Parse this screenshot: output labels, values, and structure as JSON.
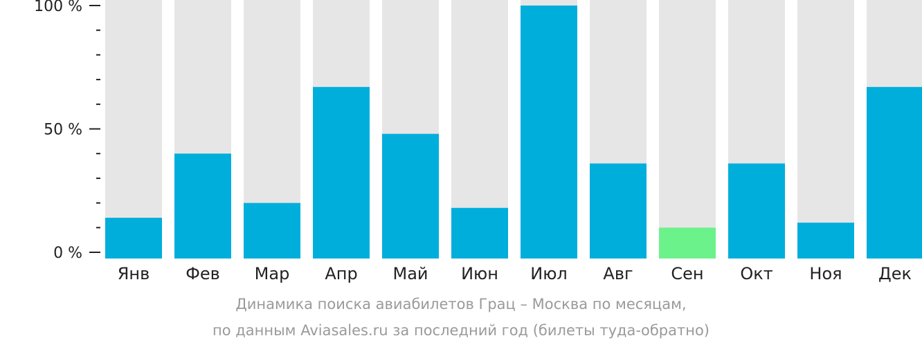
{
  "chart_data": {
    "type": "bar",
    "categories": [
      "Янв",
      "Фев",
      "Мар",
      "Апр",
      "Май",
      "Июн",
      "Июл",
      "Авг",
      "Сен",
      "Окт",
      "Ноя",
      "Дек"
    ],
    "values": [
      14,
      40,
      20,
      67,
      48,
      18,
      100,
      36,
      10,
      36,
      12,
      67
    ],
    "ylim": [
      0,
      100
    ],
    "yticks": [
      {
        "value": 0,
        "label": "0 %"
      },
      {
        "value": 50,
        "label": "50 %"
      },
      {
        "value": 100,
        "label": "100 %"
      }
    ],
    "minor_tick_step": 10,
    "highlight_index": 8,
    "colors": {
      "bar": "#00aedc",
      "highlight": "#6cf28a",
      "background_bar": "#e6e6e6",
      "axis": "#222222"
    }
  },
  "caption": {
    "line1": "Динамика поиска авиабилетов Грац – Москва по месяцам,",
    "line2": "по данным Aviasales.ru за последний год (билеты туда-обратно)"
  }
}
